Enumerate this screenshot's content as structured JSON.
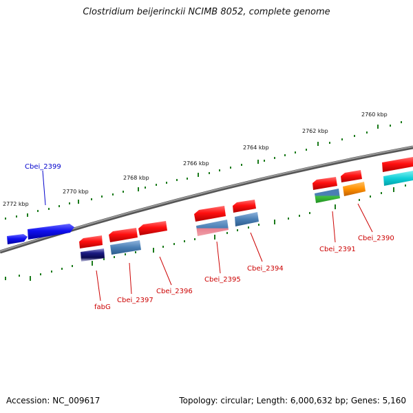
{
  "title": "Clostridium beijerinckii NCIMB 8052, complete genome",
  "footer": {
    "accession": "Accession: NC_009617",
    "topology": "Topology: circular; Length: 6,000,632 bp; Genes: 5,160"
  },
  "kbp_labels": [
    "2772 kbp",
    "2770 kbp",
    "2768 kbp",
    "2766 kbp",
    "2764 kbp",
    "2762 kbp",
    "2760 kbp"
  ],
  "gene_labels": [
    "Cbei_2399",
    "fabG",
    "Cbei_2397",
    "Cbei_2396",
    "Cbei_2395",
    "Cbei_2394",
    "Cbei_2391",
    "Cbei_2390"
  ],
  "colors": {
    "backbone": "#777777",
    "tick": "#1a7a1a",
    "gene_red": "#ee1111",
    "gene_blue": "#1111ee",
    "label_red": "#cc0000",
    "label_blue": "#0000cc"
  }
}
